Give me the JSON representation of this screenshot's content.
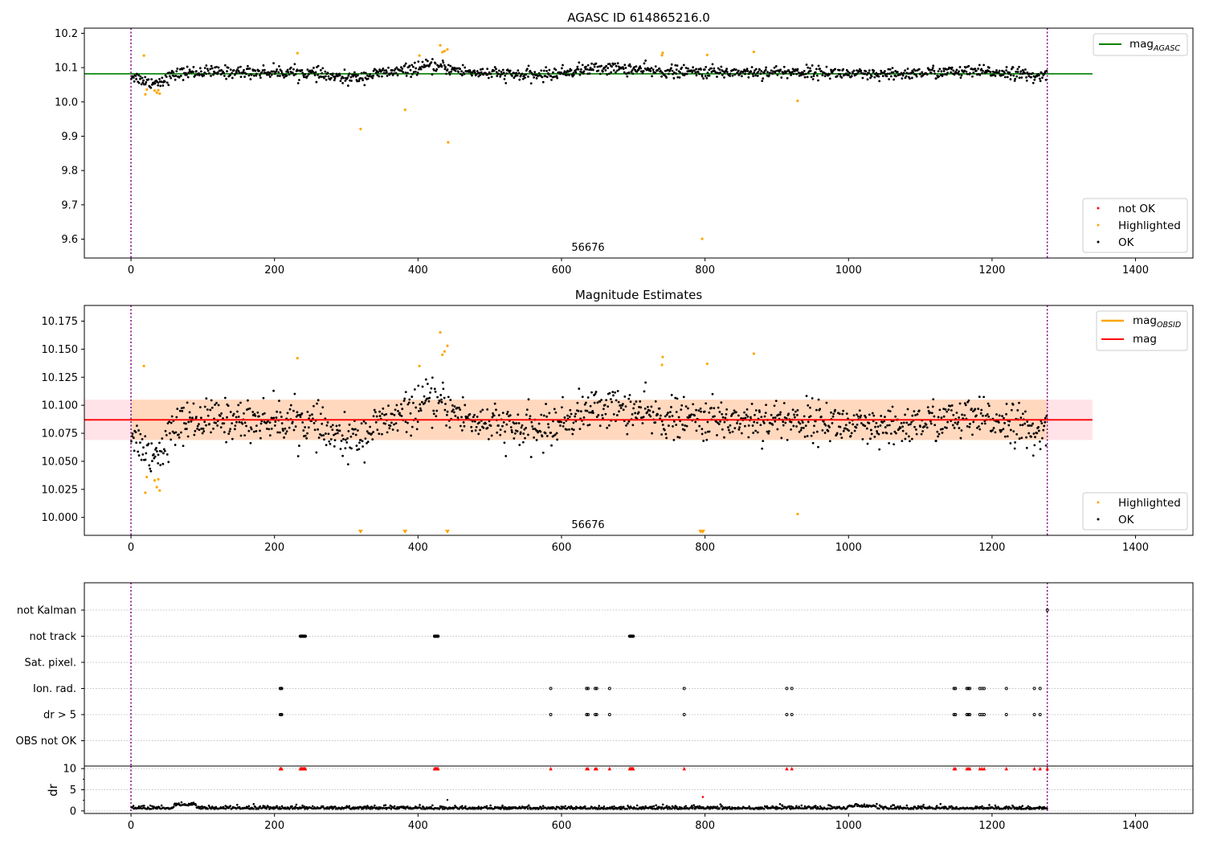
{
  "chart_data": [
    {
      "type": "scatter",
      "title": "AGASC ID 614865216.0",
      "xlim": [
        -65,
        1480
      ],
      "ylim": [
        9.545,
        10.215
      ],
      "xticks": [
        0,
        200,
        400,
        600,
        800,
        1000,
        1200,
        1400
      ],
      "yticks": [
        9.6,
        9.7,
        9.8,
        9.9,
        10.0,
        10.1,
        10.2
      ],
      "ytick_labels": [
        "9.6",
        "9.7",
        "9.8",
        "9.9",
        "10.0",
        "10.1",
        "10.2"
      ],
      "grid": false,
      "vlines": [
        0,
        1277
      ],
      "hline": {
        "y": 10.082,
        "x_end": 1340,
        "color": "#008000"
      },
      "annotation": {
        "text": "56676",
        "x": 638,
        "y": 9.565
      },
      "legend_upper": {
        "placement": "top-right",
        "entries": [
          {
            "label": "mag",
            "subscript": "AGASC",
            "color": "#008000"
          }
        ]
      },
      "legend_lower": {
        "placement": "bottom-right",
        "entries": [
          {
            "label": "not OK",
            "color": "#ff0000"
          },
          {
            "label": "Highlighted",
            "color": "#ffa500"
          },
          {
            "label": "OK",
            "color": "#000000"
          }
        ]
      },
      "series": [
        {
          "name": "OK",
          "color": "#000000",
          "generator": {
            "n": 1277,
            "noise": 0.012
          }
        },
        {
          "name": "Highlighted",
          "color": "#ffa500",
          "points": [
            [
              18,
              10.135
            ],
            [
              20,
              10.022
            ],
            [
              22,
              10.036
            ],
            [
              33,
              10.033
            ],
            [
              36,
              10.027
            ],
            [
              38,
              10.034
            ],
            [
              40,
              10.024
            ],
            [
              232,
              10.142
            ],
            [
              320,
              9.921
            ],
            [
              382,
              9.977
            ],
            [
              402,
              10.135
            ],
            [
              431,
              10.165
            ],
            [
              434,
              10.145
            ],
            [
              437,
              10.148
            ],
            [
              441,
              10.153
            ],
            [
              442,
              9.882
            ],
            [
              740,
              10.136
            ],
            [
              741,
              10.143
            ],
            [
              796,
              9.601
            ],
            [
              803,
              10.137
            ],
            [
              868,
              10.146
            ],
            [
              929,
              10.003
            ]
          ]
        },
        {
          "name": "not OK",
          "color": "#ff0000",
          "points": []
        }
      ]
    },
    {
      "type": "scatter",
      "title": "Magnitude Estimates",
      "xlim": [
        -65,
        1480
      ],
      "ylim": [
        9.984,
        10.189
      ],
      "xticks": [
        0,
        200,
        400,
        600,
        800,
        1000,
        1200,
        1400
      ],
      "yticks": [
        10.0,
        10.025,
        10.05,
        10.075,
        10.1,
        10.125,
        10.15,
        10.175
      ],
      "ytick_labels": [
        "10.000",
        "10.025",
        "10.050",
        "10.075",
        "10.100",
        "10.125",
        "10.150",
        "10.175"
      ],
      "grid": false,
      "vlines": [
        0,
        1277
      ],
      "mean_line": {
        "y": 10.087,
        "x_start": -65,
        "x_end": 1340,
        "color": "#ff0000"
      },
      "band": {
        "y_low": 10.069,
        "y_high": 10.105,
        "color": "#ffc0cb"
      },
      "obsid_band": {
        "y_low": 10.069,
        "y_high": 10.105,
        "x_start": 0,
        "x_end": 1277,
        "color": "#ffa500"
      },
      "annotation": {
        "text": "56676",
        "x": 638,
        "y": 9.991
      },
      "off_scale_markers": [
        320,
        382,
        441,
        794,
        797
      ],
      "legend_upper": {
        "placement": "top-right",
        "entries": [
          {
            "label": "mag",
            "subscript": "OBSID",
            "color": "#ffa500"
          },
          {
            "label": "mag",
            "subscript": "",
            "color": "#ff0000"
          }
        ]
      },
      "legend_lower": {
        "placement": "bottom-right",
        "entries": [
          {
            "label": "Highlighted",
            "color": "#ffa500"
          },
          {
            "label": "OK",
            "color": "#000000"
          }
        ]
      },
      "series": [
        {
          "name": "OK",
          "color": "#000000",
          "generator": {
            "n": 1277,
            "noise": 0.012
          }
        },
        {
          "name": "Highlighted",
          "color": "#ffa500",
          "points": [
            [
              18,
              10.135
            ],
            [
              20,
              10.022
            ],
            [
              22,
              10.036
            ],
            [
              33,
              10.033
            ],
            [
              36,
              10.027
            ],
            [
              38,
              10.034
            ],
            [
              40,
              10.024
            ],
            [
              232,
              10.142
            ],
            [
              402,
              10.135
            ],
            [
              431,
              10.165
            ],
            [
              434,
              10.145
            ],
            [
              437,
              10.148
            ],
            [
              441,
              10.153
            ],
            [
              740,
              10.136
            ],
            [
              741,
              10.143
            ],
            [
              803,
              10.137
            ],
            [
              868,
              10.146
            ],
            [
              929,
              10.003
            ]
          ]
        }
      ]
    },
    {
      "type": "scatter",
      "title": "",
      "xlim": [
        -65,
        1480
      ],
      "xticks": [
        0,
        200,
        400,
        600,
        800,
        1000,
        1200,
        1400
      ],
      "vlines": [
        0,
        1277
      ],
      "flags": {
        "categories": [
          "not Kalman",
          "not track",
          "Sat. pixel.",
          "Ion. rad.",
          "dr > 5",
          "OBS not OK"
        ],
        "points": {
          "not Kalman": [
            1277
          ],
          "not track": [
            236,
            237,
            238,
            239,
            240,
            241,
            242,
            243,
            423,
            424,
            425,
            426,
            427,
            428,
            695,
            696,
            697,
            698,
            699,
            700
          ],
          "Sat. pixel.": [],
          "Ion. rad.": [
            208,
            209,
            210,
            585,
            635,
            637,
            647,
            649,
            667,
            771,
            914,
            921,
            1147,
            1149,
            1165,
            1167,
            1169,
            1183,
            1186,
            1189,
            1220,
            1259,
            1267
          ],
          "dr > 5": [
            208,
            209,
            210,
            585,
            635,
            637,
            647,
            649,
            667,
            771,
            914,
            921,
            1147,
            1149,
            1165,
            1167,
            1169,
            1183,
            1186,
            1189,
            1220,
            1259,
            1267
          ],
          "OBS not OK": []
        }
      },
      "dr": {
        "ylabel": "dr",
        "ylim": [
          -0.6,
          10.6
        ],
        "yticks": [
          0,
          5,
          10
        ],
        "ytick_labels": [
          "0",
          "5",
          "10"
        ],
        "clipped_at": 10,
        "clipped_x": [
          208,
          209,
          210,
          236,
          237,
          238,
          239,
          240,
          241,
          242,
          243,
          423,
          424,
          425,
          426,
          427,
          428,
          585,
          635,
          637,
          647,
          649,
          667,
          695,
          696,
          697,
          698,
          699,
          700,
          771,
          914,
          921,
          1147,
          1149,
          1165,
          1167,
          1169,
          1183,
          1186,
          1189,
          1220,
          1259,
          1267,
          1277
        ],
        "red_points": [
          [
            797,
            3.3
          ]
        ],
        "outliers": [
          [
            441,
            2.6
          ],
          [
            75,
            1.4
          ]
        ],
        "baseline": {
          "n": 1277,
          "noise": 0.35
        }
      }
    }
  ]
}
